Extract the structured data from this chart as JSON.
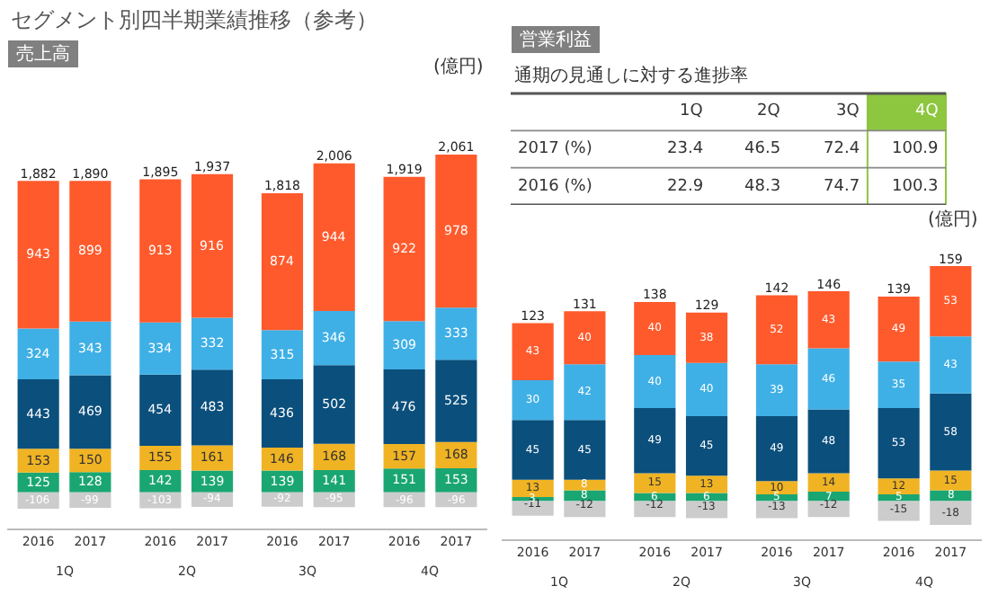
{
  "chart_data": [
    {
      "type": "bar",
      "title": "セグメント別四半期業績推移（参考）",
      "subtitle": "売上高",
      "ylabel": "(億円)",
      "stacked": true,
      "data_labels": true,
      "categories": [
        "2016",
        "2017",
        "2016",
        "2017",
        "2016",
        "2017",
        "2016",
        "2017"
      ],
      "annotations": [
        "1Q",
        "2Q",
        "3Q",
        "4Q"
      ],
      "series": [
        {
          "color": "#1aa672",
          "values": [
            125,
            128,
            142,
            139,
            139,
            141,
            151,
            153
          ]
        },
        {
          "color": "#f0b323",
          "values": [
            153,
            150,
            155,
            161,
            146,
            168,
            157,
            168
          ]
        },
        {
          "color": "#0b4f7c",
          "values": [
            443,
            469,
            454,
            483,
            436,
            502,
            476,
            525
          ]
        },
        {
          "color": "#3fb0e6",
          "values": [
            324,
            343,
            334,
            332,
            315,
            346,
            309,
            333
          ]
        },
        {
          "color": "#ff5a2c",
          "values": [
            943,
            899,
            913,
            916,
            874,
            944,
            922,
            978
          ]
        },
        {
          "color": "#cccccc",
          "values": [
            -106,
            -99,
            -103,
            -94,
            -92,
            -95,
            -96,
            -96
          ]
        }
      ],
      "totals": [
        "1,882",
        "1,890",
        "1,895",
        "1,937",
        "1,818",
        "2,006",
        "1,919",
        "2,061"
      ]
    },
    {
      "type": "heatmap",
      "data_labels": true,
      "title": "営業利益",
      "subtitle": "通期の見通しに対する進捗率",
      "categories": [
        "1Q",
        "2Q",
        "3Q",
        "4Q"
      ],
      "colors": [
        "#ffffff",
        "#ffffff",
        "#ffffff",
        "#8dc63f"
      ],
      "y_categories": [
        "2017 (%)",
        "2016 (%)"
      ],
      "cells": [
        [
          23.4,
          46.5,
          72.4,
          100.9
        ],
        [
          22.9,
          48.3,
          74.7,
          100.3
        ]
      ]
    },
    {
      "type": "bar",
      "ylabel": "(億円)",
      "stacked": true,
      "data_labels": true,
      "categories": [
        "2016",
        "2017",
        "2016",
        "2017",
        "2016",
        "2017",
        "2016",
        "2017"
      ],
      "annotations": [
        "1Q",
        "2Q",
        "3Q",
        "4Q"
      ],
      "series": [
        {
          "color": "#1aa672",
          "values": [
            3,
            8,
            6,
            6,
            5,
            7,
            5,
            8
          ]
        },
        {
          "color": "#f0b323",
          "values": [
            13,
            8,
            15,
            13,
            10,
            14,
            12,
            15
          ]
        },
        {
          "color": "#0b4f7c",
          "values": [
            45,
            45,
            49,
            45,
            49,
            48,
            53,
            58
          ]
        },
        {
          "color": "#3fb0e6",
          "values": [
            30,
            42,
            40,
            40,
            39,
            46,
            35,
            43
          ]
        },
        {
          "color": "#ff5a2c",
          "values": [
            43,
            40,
            40,
            38,
            52,
            43,
            49,
            53
          ]
        },
        {
          "color": "#cccccc",
          "values": [
            -11,
            -12,
            -12,
            -13,
            -13,
            -12,
            -15,
            -18
          ]
        }
      ],
      "totals": [
        "123",
        "131",
        "138",
        "129",
        "142",
        "146",
        "139",
        "159"
      ]
    }
  ]
}
